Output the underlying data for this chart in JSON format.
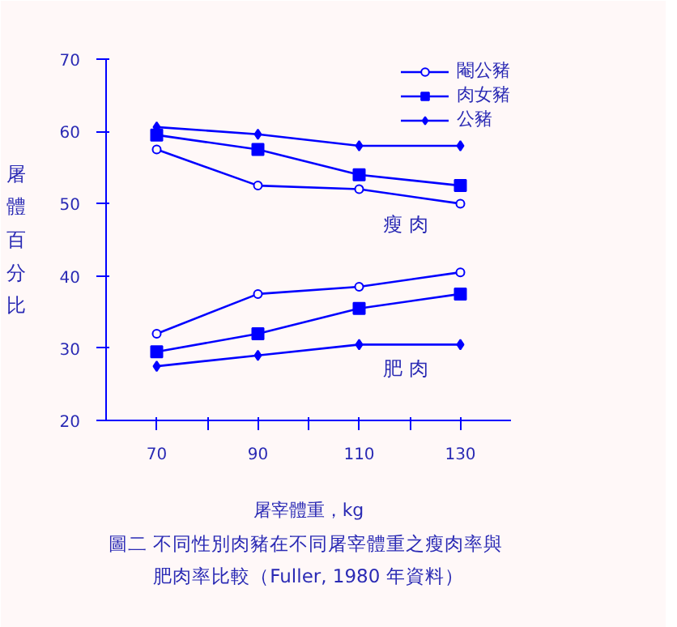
{
  "chart_data": {
    "type": "line",
    "xlabel": "屠宰體重，kg",
    "ylabel": "屠體百分比",
    "x": [
      70,
      90,
      110,
      130
    ],
    "series": [
      {
        "name": "閹公豬",
        "color": "#0000ff",
        "marker": "circle",
        "values": [
          57.5,
          52.5,
          52,
          50
        ]
      },
      {
        "name": "肉女豬",
        "color": "#0000ff",
        "marker": "square",
        "values": [
          59.5,
          57.5,
          54,
          52.5
        ]
      },
      {
        "name": "公豬",
        "color": "#0000ff",
        "marker": "diamond",
        "values": [
          60.6,
          59.6,
          58,
          58
        ]
      },
      {
        "color": "#0000ff",
        "marker": "circle",
        "values": [
          32,
          37.5,
          38.5,
          40.5
        ]
      },
      {
        "color": "#0000ff",
        "marker": "square",
        "values": [
          29.5,
          32,
          35.5,
          37.5
        ]
      },
      {
        "color": "#0000ff",
        "marker": "diamond",
        "values": [
          27.5,
          29,
          30.5,
          30.5
        ]
      }
    ],
    "xlim": [
      60,
      140
    ],
    "xticks": [
      70,
      {
        "value": 80,
        "label": null
      },
      90,
      {
        "value": 100,
        "label": null
      },
      110,
      {
        "value": 120,
        "label": null
      },
      130
    ],
    "ylim": [
      20,
      70
    ],
    "yticks": [
      20,
      30,
      40,
      50,
      60,
      70
    ],
    "grid": false,
    "legend": "top right",
    "annotations": [
      "瘦 肉",
      "肥 肉",
      "圖二  不同性別肉豬在不同屠宰體重之瘦肉率與",
      "肥肉率比較（Fuller, 1980 年資料）"
    ]
  }
}
